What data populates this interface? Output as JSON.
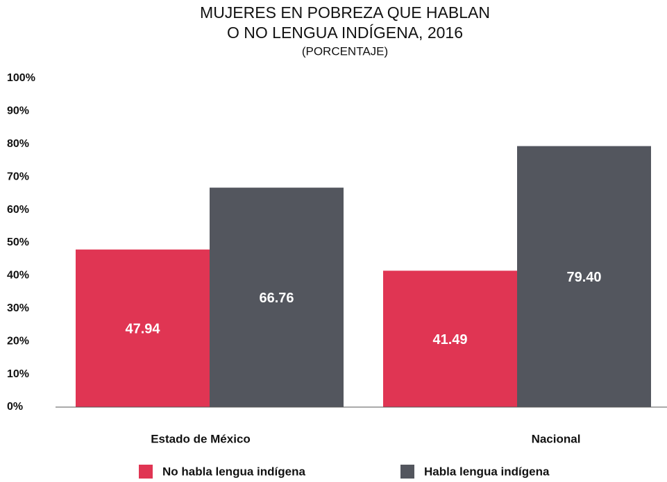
{
  "chart_data": {
    "type": "bar",
    "title": [
      "MUJERES EN POBREZA QUE HABLAN",
      "O NO LENGUA INDÍGENA, 2016"
    ],
    "subtitle": "(PORCENTAJE)",
    "categories": [
      "Estado de México",
      "Nacional"
    ],
    "series": [
      {
        "name": "No habla lengua indígena",
        "color": "#e03553",
        "values": [
          47.94,
          41.49
        ],
        "value_labels": [
          "47.94",
          "41.49"
        ]
      },
      {
        "name": "Habla lengua indígena",
        "color": "#53565e",
        "values": [
          66.76,
          79.4
        ],
        "value_labels": [
          "66.76",
          "79.40"
        ]
      }
    ],
    "ylim": [
      0,
      100
    ],
    "yticks": [
      {
        "value": 0,
        "label": "0%"
      },
      {
        "value": 10,
        "label": "10%"
      },
      {
        "value": 20,
        "label": "20%"
      },
      {
        "value": 30,
        "label": "30%"
      },
      {
        "value": 40,
        "label": "40%"
      },
      {
        "value": 50,
        "label": "50%"
      },
      {
        "value": 60,
        "label": "60%"
      },
      {
        "value": 70,
        "label": "70%"
      },
      {
        "value": 80,
        "label": "80%"
      },
      {
        "value": 90,
        "label": "90%"
      },
      {
        "value": 100,
        "label": "100%"
      }
    ],
    "grid": false
  }
}
